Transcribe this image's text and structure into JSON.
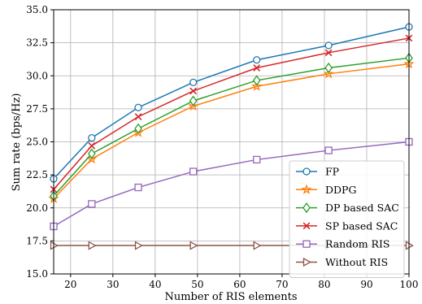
{
  "chart_data": {
    "type": "line",
    "xlabel": "Number of RIS elements",
    "ylabel": "Sum rate (bps/Hz)",
    "xlim": [
      16,
      100
    ],
    "ylim": [
      15.0,
      35.0
    ],
    "x": [
      16,
      25,
      36,
      49,
      64,
      81,
      100
    ],
    "xticks": [
      20,
      30,
      40,
      50,
      60,
      70,
      80,
      90,
      100
    ],
    "yticks": [
      15.0,
      17.5,
      20.0,
      22.5,
      25.0,
      27.5,
      30.0,
      32.5,
      35.0
    ],
    "xtick_labels": [
      "20",
      "30",
      "40",
      "50",
      "60",
      "70",
      "80",
      "90",
      "100"
    ],
    "ytick_labels": [
      "15.0",
      "17.5",
      "20.0",
      "22.5",
      "25.0",
      "27.5",
      "30.0",
      "32.5",
      "35.0"
    ],
    "grid": true,
    "legend_position": "bottom-right",
    "series": [
      {
        "name": "FP",
        "color": "#1f77b4",
        "marker": "circle",
        "values": [
          22.2,
          25.3,
          27.6,
          29.5,
          31.2,
          32.3,
          33.7
        ]
      },
      {
        "name": "DDPG",
        "color": "#ff7f0e",
        "marker": "star",
        "values": [
          20.7,
          23.7,
          25.7,
          27.7,
          29.2,
          30.15,
          30.9
        ]
      },
      {
        "name": "DP based SAC",
        "color": "#2ca02c",
        "marker": "diamond",
        "values": [
          20.9,
          24.1,
          26.0,
          28.1,
          29.65,
          30.6,
          31.35
        ]
      },
      {
        "name": "SP based SAC",
        "color": "#d62728",
        "marker": "x",
        "values": [
          21.4,
          24.7,
          26.9,
          28.85,
          30.6,
          31.75,
          32.85
        ]
      },
      {
        "name": "Random RIS",
        "color": "#9467bd",
        "marker": "square",
        "values": [
          18.6,
          20.3,
          21.55,
          22.75,
          23.65,
          24.35,
          25.0
        ]
      },
      {
        "name": "Without RIS",
        "color": "#8c564b",
        "marker": "triangle-right",
        "values": [
          17.15,
          17.15,
          17.15,
          17.15,
          17.15,
          17.15,
          17.15
        ]
      }
    ]
  }
}
